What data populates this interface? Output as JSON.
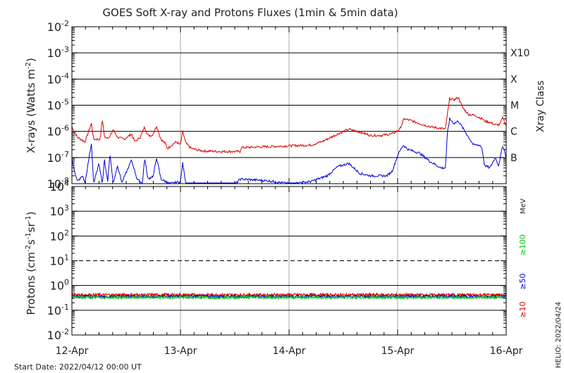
{
  "chart_data": {
    "type": "line",
    "title": "GOES Soft X-ray and Protons Fluxes   (1min & 5min data)",
    "x_tick_labels": [
      "12-Apr",
      "13-Apr",
      "14-Apr",
      "15-Apr",
      "16-Apr"
    ],
    "footer_left": "Start Date: 2022/04/12 00:00 UT",
    "footer_right": "HELIO: 2022/04/24",
    "xray_panel": {
      "ylabel": "X-rays (Watts m-2)",
      "ylabel_parts": {
        "main": "X-rays (Watts m",
        "exp": "-2",
        "close": ")"
      },
      "yscale": "log",
      "ylim": [
        1e-08,
        0.01
      ],
      "y_ticks": [
        {
          "value": 0.01,
          "base": "10",
          "exp": "-2"
        },
        {
          "value": 0.001,
          "base": "10",
          "exp": "-3"
        },
        {
          "value": 0.0001,
          "base": "10",
          "exp": "-4"
        },
        {
          "value": 1e-05,
          "base": "10",
          "exp": "-5"
        },
        {
          "value": 1e-06,
          "base": "10",
          "exp": "-6"
        },
        {
          "value": 1e-07,
          "base": "10",
          "exp": "-7"
        },
        {
          "value": 1e-08,
          "base": "10",
          "exp": "-8"
        }
      ],
      "right_label": "Xray Class",
      "classes": [
        {
          "label": "X10",
          "value": 0.001
        },
        {
          "label": "X",
          "value": 0.0001
        },
        {
          "label": "M",
          "value": 1e-05
        },
        {
          "label": "C",
          "value": 1e-06
        },
        {
          "label": "B",
          "value": 1e-07
        }
      ],
      "series": [
        {
          "color": "#dd0000",
          "points": [
            [
              0,
              1.5e-06
            ],
            [
              0.05,
              6e-07
            ],
            [
              0.12,
              4e-07
            ],
            [
              0.18,
              2e-06
            ],
            [
              0.2,
              5e-07
            ],
            [
              0.26,
              5e-07
            ],
            [
              0.28,
              3e-06
            ],
            [
              0.3,
              6e-07
            ],
            [
              0.35,
              6e-07
            ],
            [
              0.38,
              1.2e-06
            ],
            [
              0.42,
              6e-07
            ],
            [
              0.48,
              5e-07
            ],
            [
              0.55,
              8e-07
            ],
            [
              0.58,
              4e-07
            ],
            [
              0.63,
              6e-07
            ],
            [
              0.67,
              1.5e-06
            ],
            [
              0.7,
              7e-07
            ],
            [
              0.74,
              7e-07
            ],
            [
              0.78,
              1.6e-06
            ],
            [
              0.82,
              5e-07
            ],
            [
              0.86,
              3.5e-07
            ],
            [
              0.88,
              2.2e-07
            ],
            [
              0.92,
              3e-07
            ],
            [
              0.96,
              4e-07
            ],
            [
              1.0,
              3e-07
            ],
            [
              1.02,
              1e-06
            ],
            [
              1.05,
              3.5e-07
            ],
            [
              1.1,
              2.2e-07
            ],
            [
              1.2,
              1.8e-07
            ],
            [
              1.35,
              1.7e-07
            ],
            [
              1.55,
              1.7e-07
            ],
            [
              1.56,
              2.4e-07
            ],
            [
              1.8,
              2.6e-07
            ],
            [
              2.0,
              2.8e-07
            ],
            [
              2.2,
              3e-07
            ],
            [
              2.3,
              4e-07
            ],
            [
              2.45,
              8e-07
            ],
            [
              2.55,
              1.2e-06
            ],
            [
              2.63,
              1e-06
            ],
            [
              2.75,
              7e-07
            ],
            [
              2.85,
              7e-07
            ],
            [
              2.95,
              8e-07
            ],
            [
              3.02,
              1.2e-06
            ],
            [
              3.06,
              3e-06
            ],
            [
              3.12,
              2.6e-06
            ],
            [
              3.2,
              2e-06
            ],
            [
              3.3,
              1.5e-06
            ],
            [
              3.4,
              1.3e-06
            ],
            [
              3.44,
              1.2e-06
            ],
            [
              3.46,
              5e-06
            ],
            [
              3.48,
              1.8e-05
            ],
            [
              3.52,
              1.6e-05
            ],
            [
              3.56,
              2e-05
            ],
            [
              3.6,
              8e-06
            ],
            [
              3.65,
              4.5e-06
            ],
            [
              3.72,
              4e-06
            ],
            [
              3.78,
              3e-06
            ],
            [
              3.8,
              2.5e-06
            ],
            [
              3.85,
              2.2e-06
            ],
            [
              3.9,
              1.8e-06
            ],
            [
              3.94,
              1.8e-06
            ],
            [
              3.97,
              3.5e-06
            ],
            [
              4.0,
              1.5e-06
            ]
          ]
        },
        {
          "color": "#0000dd",
          "points": [
            [
              0,
              8e-08
            ],
            [
              0.05,
              1.2e-08
            ],
            [
              0.1,
              2e-08
            ],
            [
              0.12,
              1e-08
            ],
            [
              0.18,
              3.5e-07
            ],
            [
              0.2,
              1e-08
            ],
            [
              0.25,
              6e-08
            ],
            [
              0.28,
              1e-08
            ],
            [
              0.3,
              8e-08
            ],
            [
              0.33,
              1.2e-08
            ],
            [
              0.35,
              1.5e-07
            ],
            [
              0.38,
              1e-08
            ],
            [
              0.42,
              5e-08
            ],
            [
              0.46,
              1.1e-08
            ],
            [
              0.55,
              8e-08
            ],
            [
              0.6,
              1.5e-08
            ],
            [
              0.65,
              1e-08
            ],
            [
              0.67,
              1e-07
            ],
            [
              0.7,
              1.5e-08
            ],
            [
              0.75,
              2e-08
            ],
            [
              0.78,
              1e-07
            ],
            [
              0.82,
              1.5e-08
            ],
            [
              0.9,
              1e-08
            ],
            [
              1.0,
              1.2e-08
            ],
            [
              1.02,
              6e-08
            ],
            [
              1.05,
              1e-08
            ],
            [
              1.3,
              9e-09
            ],
            [
              1.5,
              9e-09
            ],
            [
              1.55,
              1.5e-08
            ],
            [
              1.8,
              1.3e-08
            ],
            [
              2.0,
              1e-08
            ],
            [
              2.2,
              1.2e-08
            ],
            [
              2.35,
              2e-08
            ],
            [
              2.45,
              4.5e-08
            ],
            [
              2.55,
              6e-08
            ],
            [
              2.65,
              2.5e-08
            ],
            [
              2.75,
              2e-08
            ],
            [
              2.9,
              2e-08
            ],
            [
              2.95,
              3e-08
            ],
            [
              3.0,
              1.2e-07
            ],
            [
              3.05,
              3e-07
            ],
            [
              3.1,
              2e-07
            ],
            [
              3.2,
              1.5e-07
            ],
            [
              3.3,
              7e-08
            ],
            [
              3.4,
              4e-08
            ],
            [
              3.44,
              4e-08
            ],
            [
              3.46,
              1e-06
            ],
            [
              3.48,
              3e-06
            ],
            [
              3.52,
              2e-06
            ],
            [
              3.56,
              2.5e-06
            ],
            [
              3.62,
              1e-06
            ],
            [
              3.7,
              3e-07
            ],
            [
              3.76,
              3e-07
            ],
            [
              3.78,
              2e-07
            ],
            [
              3.8,
              5e-08
            ],
            [
              3.85,
              4e-08
            ],
            [
              3.9,
              1e-07
            ],
            [
              3.93,
              5e-08
            ],
            [
              3.97,
              3e-07
            ],
            [
              4.0,
              1e-07
            ]
          ]
        }
      ]
    },
    "proton_panel": {
      "ylabel": "Protons (cm-2s-1sr-1)",
      "ylabel_parts": {
        "a": "Protons (cm",
        "e1": "-2",
        "b": "s",
        "e2": "-1",
        "c": "sr",
        "e3": "-1",
        "d": ")"
      },
      "yscale": "log",
      "ylim": [
        0.01,
        10000.0
      ],
      "y_ticks": [
        {
          "value": 10000.0,
          "base": "10",
          "exp": "4"
        },
        {
          "value": 1000.0,
          "base": "10",
          "exp": "3"
        },
        {
          "value": 100.0,
          "base": "10",
          "exp": "2"
        },
        {
          "value": 10.0,
          "base": "10",
          "exp": "1"
        },
        {
          "value": 1.0,
          "base": "10",
          "exp": "0"
        },
        {
          "value": 0.1,
          "base": "10",
          "exp": "-1"
        },
        {
          "value": 0.01,
          "base": "10",
          "exp": "-2"
        }
      ],
      "threshold_dashed": 10,
      "legend": [
        {
          "label": "≥10",
          "color": "#dd0000"
        },
        {
          "label": "≥50",
          "color": "#0000dd"
        },
        {
          "label": "≥100",
          "color": "#00cc00"
        }
      ],
      "unit": "MeV",
      "series": [
        {
          "name": "≥10",
          "color": "#dd0000",
          "points": [
            [
              0,
              0.42
            ],
            [
              4,
              0.42
            ]
          ]
        },
        {
          "name": "≥50",
          "color": "#0000dd",
          "points": [
            [
              0,
              0.36
            ],
            [
              4,
              0.36
            ]
          ]
        },
        {
          "name": "≥100",
          "color": "#00cc00",
          "points": [
            [
              0,
              0.33
            ],
            [
              4,
              0.33
            ]
          ]
        }
      ]
    }
  }
}
